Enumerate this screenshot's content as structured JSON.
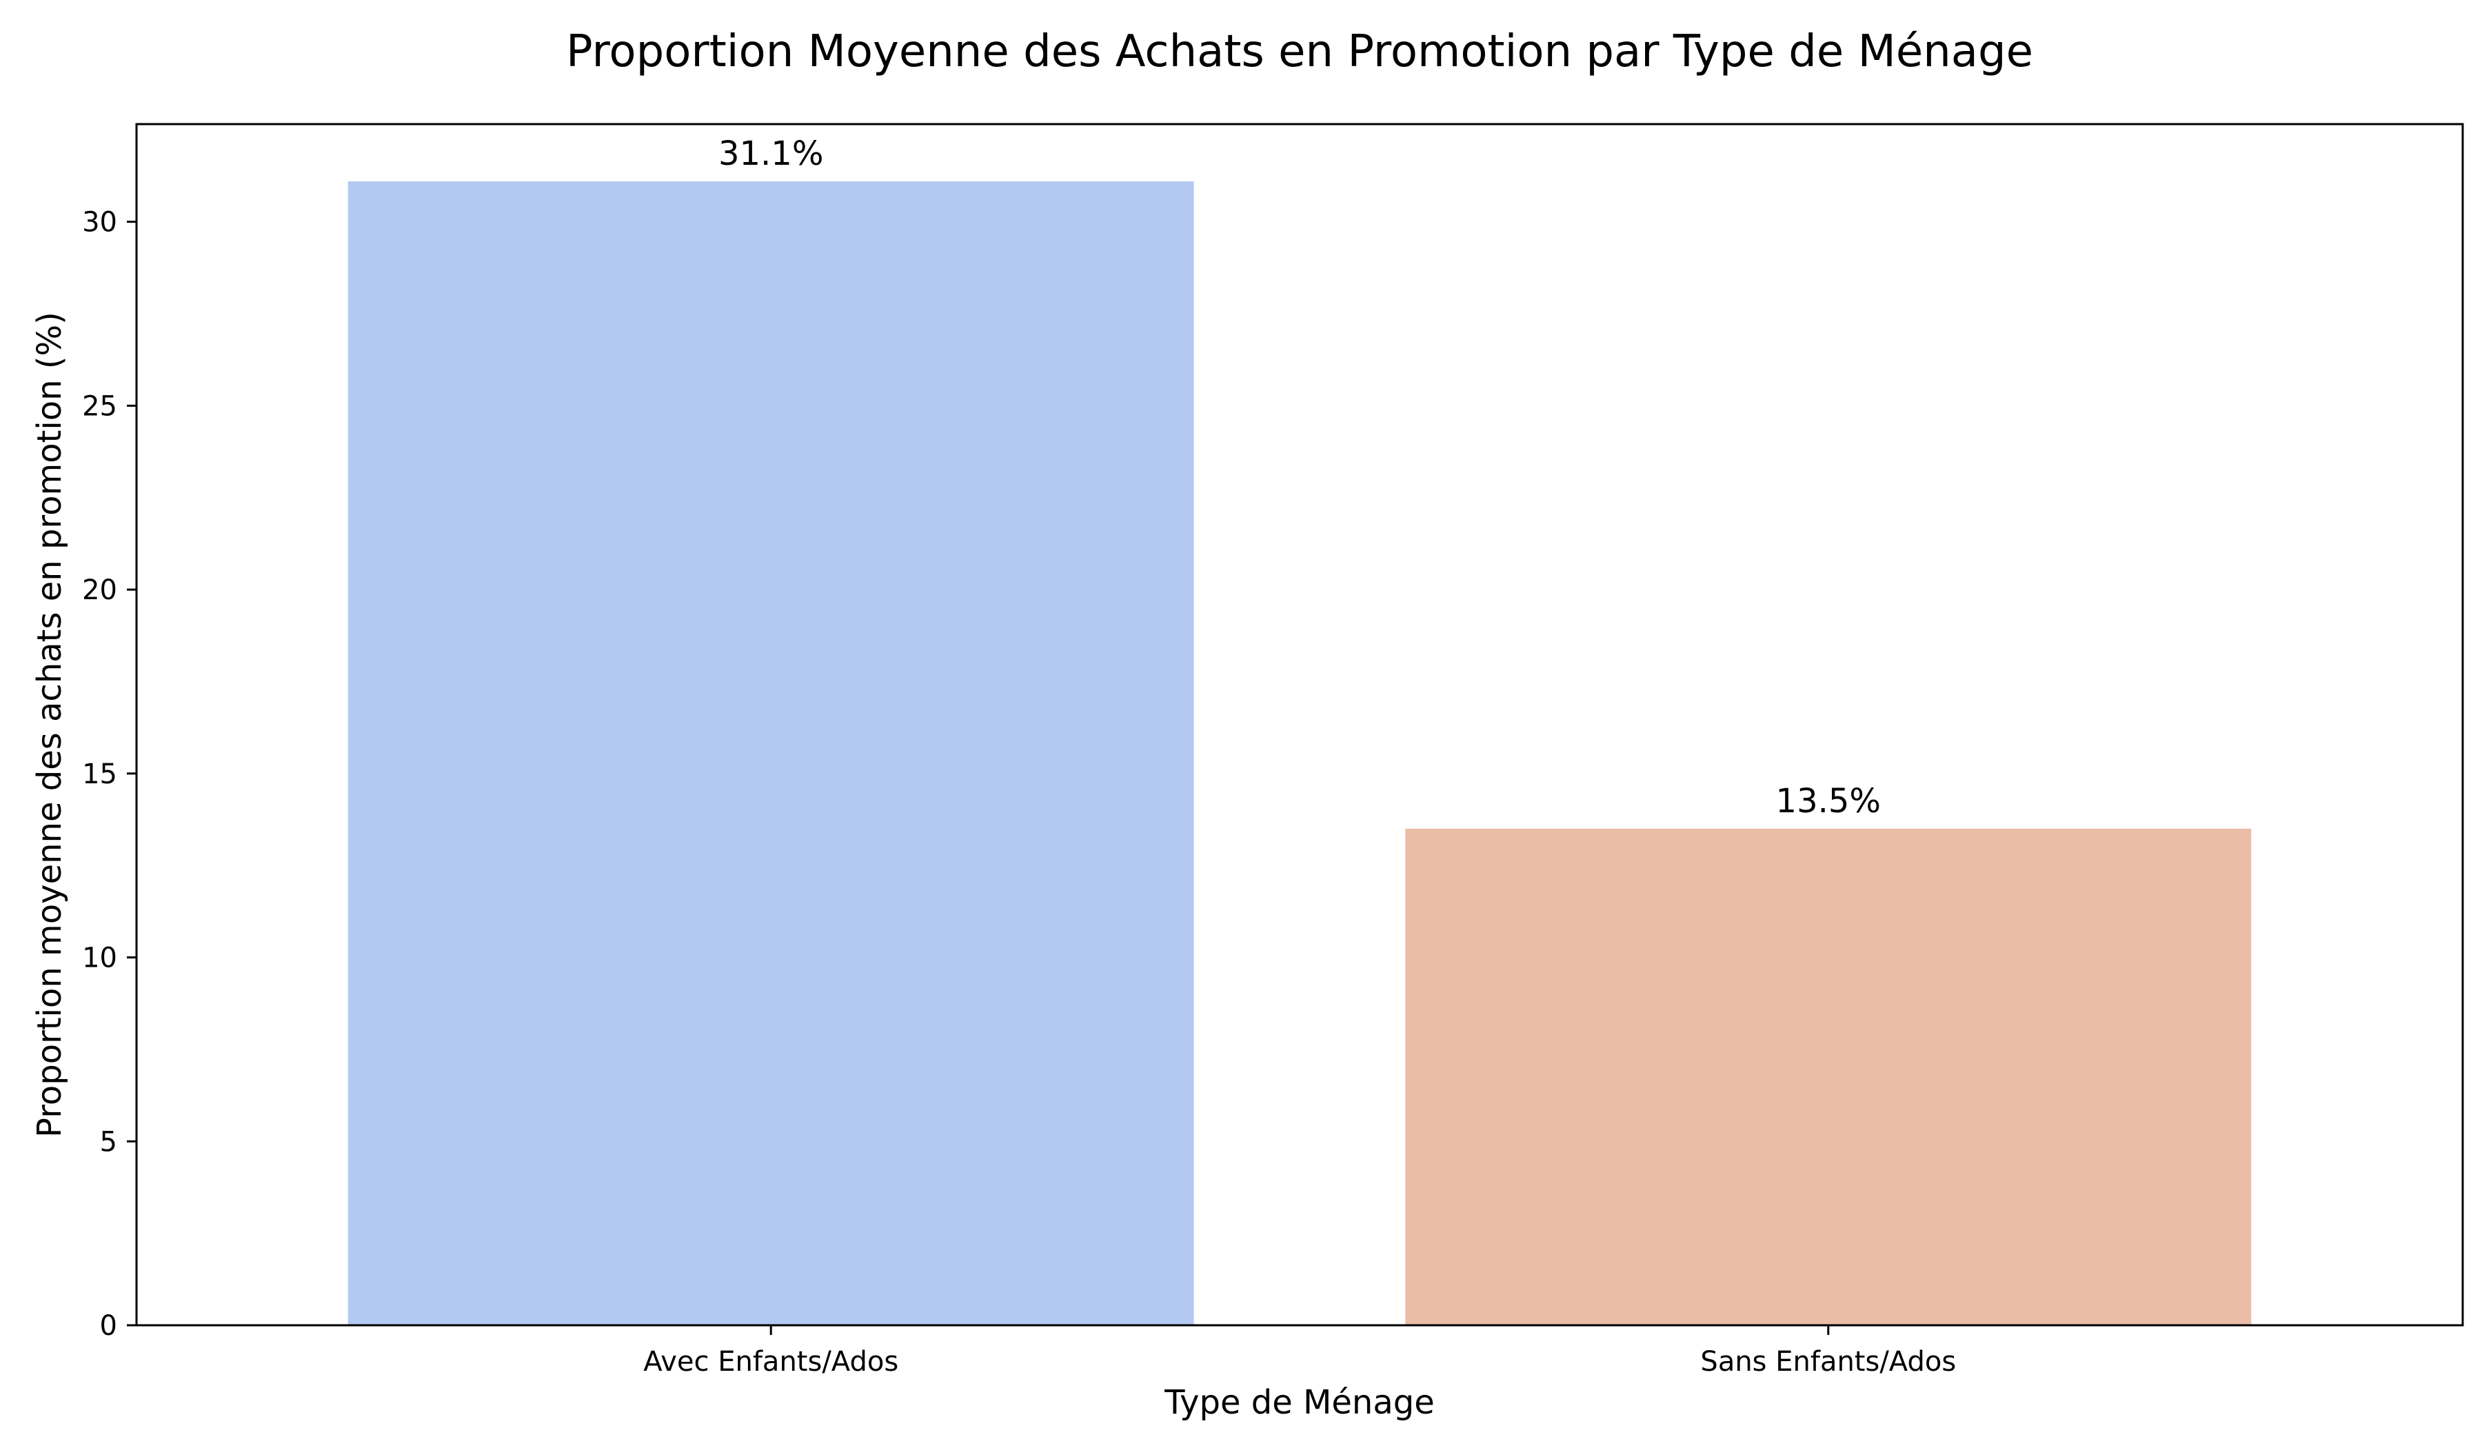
{
  "chart_data": {
    "type": "bar",
    "title": "Proportion Moyenne des Achats en Promotion par Type de Ménage",
    "xlabel": "Type de Ménage",
    "ylabel": "Proportion moyenne des achats en promotion (%)",
    "categories": [
      "Avec Enfants/Ados",
      "Sans Enfants/Ados"
    ],
    "values": [
      31.1,
      13.5
    ],
    "data_labels": [
      "31.1%",
      "13.5%"
    ],
    "colors": [
      "#b4c9f2",
      "#ebbca6"
    ],
    "ylim": [
      0,
      32.655
    ],
    "yticks": [
      0,
      5,
      10,
      15,
      20,
      25,
      30
    ],
    "ytick_labels": [
      "0",
      "5",
      "10",
      "15",
      "20",
      "25",
      "30"
    ],
    "grid": false,
    "legend": "none"
  }
}
